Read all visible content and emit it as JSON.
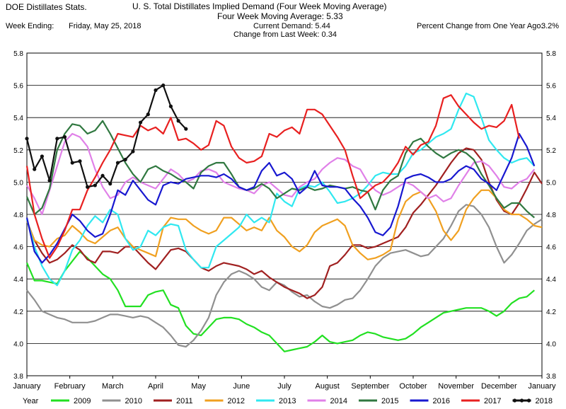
{
  "header": {
    "source": "DOE Distillates Stats.",
    "title": "U. S. Total Distillates Implied Demand  (Four Week Moving Average)",
    "subtitle": "Four Week Moving Average:  5.33",
    "week_ending_label": "Week Ending:",
    "week_ending_value": "Friday, May 25, 2018",
    "current_demand": "Current Demand:  5.44",
    "change_last_week": "Change from Last Week:  0.34",
    "pct_change_label": "Percent Change from One Year Ago:",
    "pct_change_value": "3.2%"
  },
  "chart_data": {
    "type": "line",
    "title": "U. S. Total Distillates Implied Demand  (Four Week Moving Average)",
    "xlabel": "",
    "ylabel": "",
    "x_unit": "week of year",
    "ylim": [
      3.8,
      5.8
    ],
    "yticks": [
      "3.8",
      "4.0",
      "4.2",
      "4.4",
      "4.6",
      "4.8",
      "5.0",
      "5.2",
      "5.4",
      "5.6",
      "5.8"
    ],
    "month_labels": [
      "January",
      "February",
      "March",
      "April",
      "May",
      "June",
      "July",
      "August",
      "September",
      "October",
      "November",
      "December",
      "January"
    ],
    "grid": "horizontal",
    "legend_position": "bottom",
    "legend_title": "Year",
    "series": [
      {
        "name": "2009",
        "color": "#22e022",
        "values": [
          4.5,
          4.39,
          4.39,
          4.38,
          4.37,
          4.45,
          4.51,
          4.57,
          4.53,
          4.48,
          4.43,
          4.4,
          4.33,
          4.23,
          4.23,
          4.23,
          4.3,
          4.32,
          4.33,
          4.24,
          4.22,
          4.11,
          4.06,
          4.05,
          4.1,
          4.15,
          4.16,
          4.16,
          4.15,
          4.12,
          4.1,
          4.07,
          4.05,
          4.0,
          3.95,
          3.96,
          3.97,
          3.98,
          4.01,
          4.05,
          4.01,
          4.0,
          4.01,
          4.02,
          4.05,
          4.07,
          4.06,
          4.04,
          4.03,
          4.02,
          4.03,
          4.06,
          4.1,
          4.13,
          4.16,
          4.19,
          4.2,
          4.21,
          4.22,
          4.22,
          4.22,
          4.2,
          4.17,
          4.2,
          4.25,
          4.28,
          4.29,
          4.33
        ]
      },
      {
        "name": "2010",
        "color": "#909090",
        "values": [
          4.33,
          4.27,
          4.2,
          4.18,
          4.16,
          4.15,
          4.13,
          4.13,
          4.13,
          4.14,
          4.16,
          4.18,
          4.18,
          4.17,
          4.16,
          4.17,
          4.16,
          4.13,
          4.1,
          4.05,
          3.99,
          3.98,
          4.02,
          4.08,
          4.16,
          4.3,
          4.38,
          4.43,
          4.45,
          4.43,
          4.4,
          4.35,
          4.33,
          4.38,
          4.36,
          4.32,
          4.29,
          4.3,
          4.26,
          4.23,
          4.22,
          4.24,
          4.27,
          4.28,
          4.33,
          4.4,
          4.48,
          4.53,
          4.56,
          4.57,
          4.58,
          4.56,
          4.54,
          4.55,
          4.6,
          4.65,
          4.73,
          4.82,
          4.86,
          4.85,
          4.8,
          4.72,
          4.6,
          4.5,
          4.55,
          4.62,
          4.7,
          4.74,
          4.77
        ]
      },
      {
        "name": "2011",
        "color": "#a02020",
        "values": [
          4.76,
          4.64,
          4.56,
          4.5,
          4.52,
          4.56,
          4.61,
          4.58,
          4.52,
          4.5,
          4.57,
          4.57,
          4.56,
          4.6,
          4.6,
          4.55,
          4.5,
          4.46,
          4.52,
          4.58,
          4.59,
          4.57,
          4.52,
          4.47,
          4.45,
          4.48,
          4.5,
          4.49,
          4.48,
          4.46,
          4.43,
          4.45,
          4.41,
          4.38,
          4.35,
          4.33,
          4.31,
          4.28,
          4.3,
          4.35,
          4.48,
          4.5,
          4.55,
          4.61,
          4.61,
          4.59,
          4.6,
          4.62,
          4.64,
          4.66,
          4.72,
          4.81,
          4.86,
          4.92,
          4.98,
          5.05,
          5.12,
          5.18,
          5.21,
          5.2,
          5.14,
          5.0,
          4.89,
          4.82,
          4.8,
          4.87,
          4.96,
          5.06,
          4.99
        ]
      },
      {
        "name": "2012",
        "color": "#f0a020",
        "values": [
          4.76,
          4.64,
          4.61,
          4.6,
          4.65,
          4.67,
          4.73,
          4.69,
          4.64,
          4.62,
          4.66,
          4.7,
          4.72,
          4.65,
          4.6,
          4.58,
          4.56,
          4.54,
          4.72,
          4.78,
          4.77,
          4.77,
          4.73,
          4.7,
          4.68,
          4.7,
          4.78,
          4.78,
          4.74,
          4.7,
          4.72,
          4.7,
          4.78,
          4.7,
          4.66,
          4.6,
          4.57,
          4.61,
          4.69,
          4.73,
          4.75,
          4.77,
          4.73,
          4.61,
          4.56,
          4.52,
          4.53,
          4.55,
          4.58,
          4.77,
          4.88,
          4.92,
          4.94,
          4.9,
          4.82,
          4.7,
          4.64,
          4.7,
          4.83,
          4.9,
          4.95,
          4.95,
          4.9,
          4.83,
          4.8,
          4.8,
          4.77,
          4.73,
          4.72
        ]
      },
      {
        "name": "2013",
        "color": "#30e8f0",
        "values": [
          4.77,
          4.6,
          4.48,
          4.4,
          4.36,
          4.45,
          4.58,
          4.64,
          4.73,
          4.79,
          4.75,
          4.83,
          4.8,
          4.65,
          4.58,
          4.6,
          4.7,
          4.67,
          4.72,
          4.74,
          4.73,
          4.58,
          4.52,
          4.47,
          4.47,
          4.6,
          4.64,
          4.68,
          4.72,
          4.8,
          4.75,
          4.78,
          4.75,
          4.93,
          4.88,
          4.85,
          4.96,
          4.98,
          4.97,
          5.0,
          4.94,
          4.87,
          4.88,
          4.9,
          4.93,
          4.98,
          5.04,
          5.06,
          5.05,
          5.05,
          5.1,
          5.18,
          5.2,
          5.24,
          5.28,
          5.3,
          5.33,
          5.45,
          5.55,
          5.53,
          5.4,
          5.26,
          5.2,
          5.15,
          5.12,
          5.14,
          5.15,
          5.1
        ]
      },
      {
        "name": "2014",
        "color": "#e080e8",
        "values": [
          4.98,
          4.9,
          4.8,
          4.95,
          5.1,
          5.25,
          5.3,
          5.28,
          5.22,
          5.08,
          4.97,
          4.9,
          4.92,
          5.0,
          5.03,
          5.0,
          4.98,
          4.96,
          5.02,
          5.08,
          5.05,
          5.0,
          5.02,
          5.07,
          5.08,
          5.06,
          5.0,
          4.98,
          4.96,
          4.95,
          4.93,
          4.98,
          5.0,
          4.96,
          4.92,
          4.91,
          4.97,
          5.0,
          5.02,
          5.08,
          5.12,
          5.15,
          5.14,
          5.1,
          5.08,
          5.0,
          4.95,
          4.92,
          4.94,
          4.97,
          5.0,
          4.98,
          4.94,
          4.9,
          4.92,
          4.88,
          4.9,
          4.98,
          5.05,
          5.12,
          5.13,
          5.1,
          5.04,
          4.97,
          4.96,
          5.0,
          5.02,
          5.08
        ]
      },
      {
        "name": "2015",
        "color": "#307840",
        "values": [
          4.91,
          4.8,
          4.84,
          4.96,
          5.2,
          5.3,
          5.36,
          5.35,
          5.3,
          5.32,
          5.38,
          5.3,
          5.21,
          5.12,
          5.05,
          5.0,
          5.08,
          5.1,
          5.07,
          5.05,
          5.02,
          5.0,
          4.96,
          5.06,
          5.1,
          5.12,
          5.12,
          5.05,
          4.97,
          4.95,
          4.96,
          4.99,
          4.96,
          4.9,
          4.93,
          4.96,
          4.95,
          4.97,
          4.95,
          4.96,
          4.98,
          4.97,
          4.96,
          4.97,
          4.95,
          4.94,
          4.83,
          4.95,
          5.01,
          5.04,
          5.18,
          5.25,
          5.27,
          5.22,
          5.18,
          5.15,
          5.18,
          5.2,
          5.18,
          5.14,
          5.05,
          4.98,
          4.9,
          4.84,
          4.87,
          4.87,
          4.82,
          4.78
        ]
      },
      {
        "name": "2016",
        "color": "#1818d0",
        "values": [
          4.78,
          4.57,
          4.5,
          4.55,
          4.62,
          4.71,
          4.8,
          4.76,
          4.7,
          4.66,
          4.68,
          4.8,
          4.95,
          4.92,
          5.01,
          4.95,
          4.89,
          4.86,
          4.98,
          5.0,
          4.99,
          5.02,
          5.03,
          5.04,
          5.04,
          5.03,
          5.05,
          5.02,
          4.97,
          4.95,
          4.97,
          5.07,
          5.12,
          5.04,
          5.06,
          5.02,
          4.93,
          4.97,
          5.07,
          4.98,
          4.97,
          4.97,
          4.96,
          4.9,
          4.85,
          4.78,
          4.69,
          4.67,
          4.72,
          4.85,
          5.02,
          5.04,
          5.05,
          5.03,
          5.0,
          5.0,
          5.02,
          5.07,
          5.1,
          5.08,
          5.02,
          4.99,
          4.95,
          5.05,
          5.15,
          5.3,
          5.22,
          5.1
        ]
      },
      {
        "name": "2017",
        "color": "#e82020",
        "values": [
          5.1,
          4.8,
          4.65,
          4.53,
          4.6,
          4.7,
          4.83,
          4.83,
          4.95,
          5.03,
          5.12,
          5.2,
          5.3,
          5.29,
          5.28,
          5.35,
          5.32,
          5.34,
          5.3,
          5.4,
          5.26,
          5.27,
          5.24,
          5.2,
          5.23,
          5.38,
          5.35,
          5.22,
          5.15,
          5.12,
          5.13,
          5.16,
          5.3,
          5.28,
          5.32,
          5.34,
          5.3,
          5.45,
          5.45,
          5.42,
          5.35,
          5.28,
          5.2,
          5.04,
          4.9,
          4.94,
          4.98,
          5.0,
          5.05,
          5.12,
          5.22,
          5.17,
          5.23,
          5.25,
          5.35,
          5.52,
          5.54,
          5.47,
          5.42,
          5.37,
          5.33,
          5.35,
          5.34,
          5.38,
          5.48,
          5.27
        ]
      },
      {
        "name": "2018",
        "color": "#101010",
        "marker": "dot",
        "values": [
          5.27,
          5.08,
          5.16,
          5.01,
          5.27,
          5.28,
          5.12,
          5.13,
          4.97,
          4.98,
          5.04,
          4.99,
          5.12,
          5.14,
          5.19,
          5.37,
          5.42,
          5.57,
          5.6,
          5.47,
          5.38,
          5.33
        ]
      }
    ]
  }
}
